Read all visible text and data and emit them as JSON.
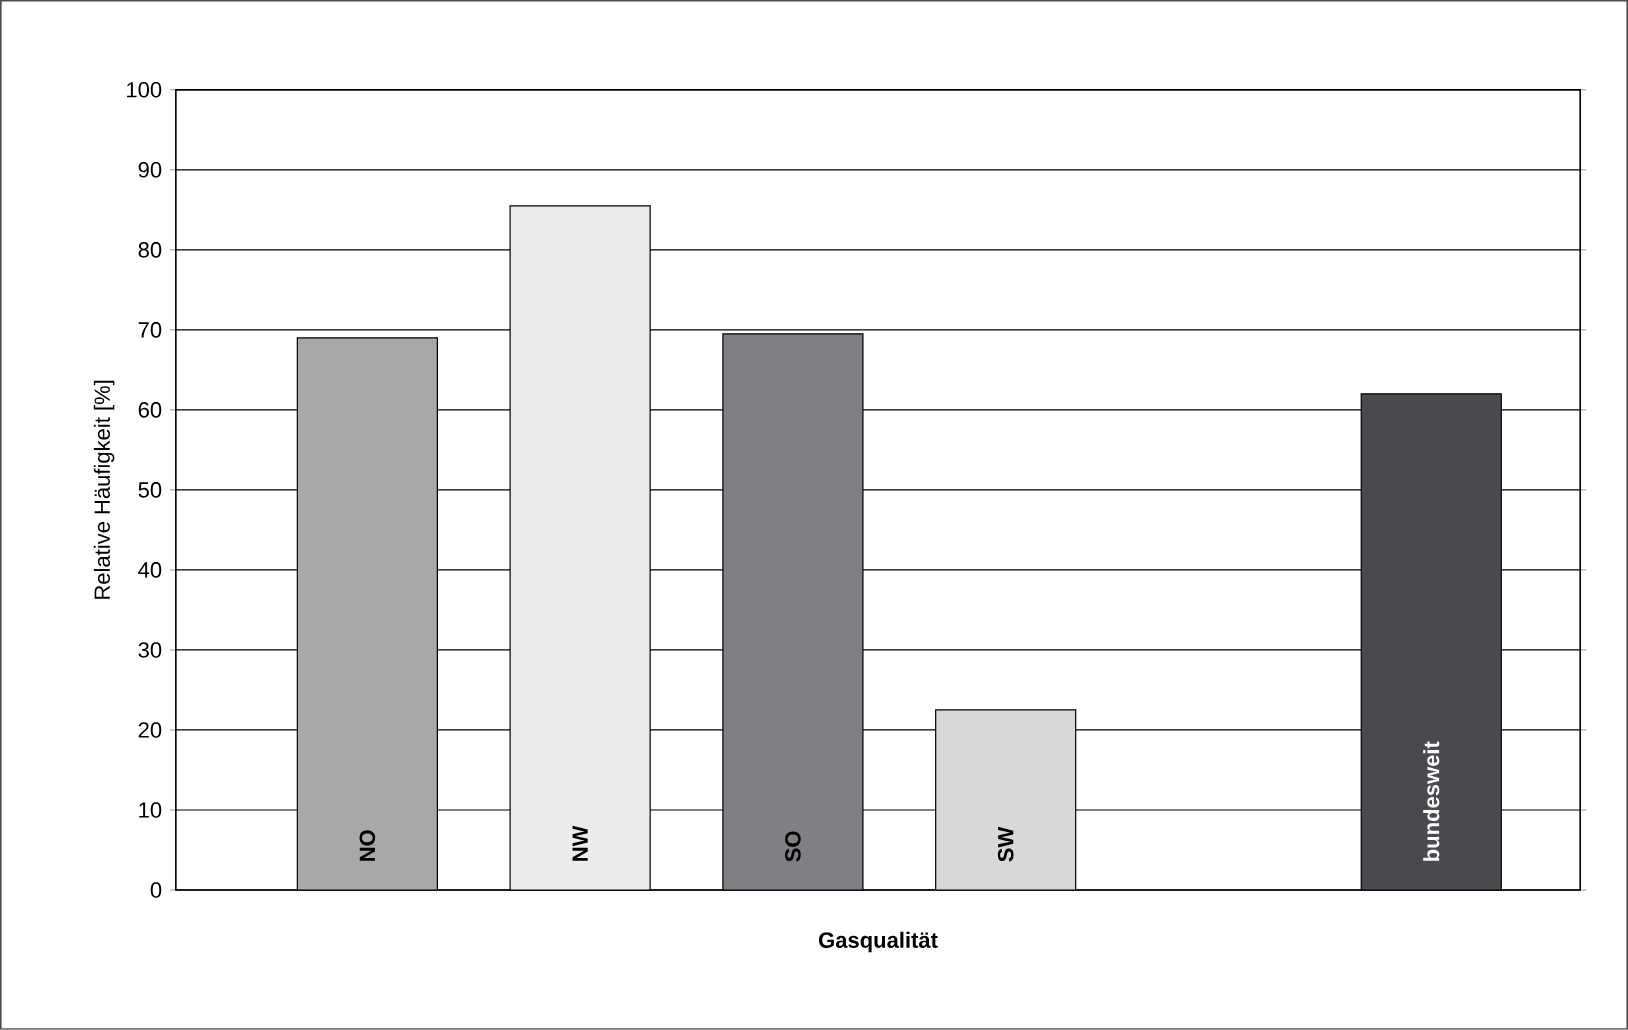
{
  "chart_data": {
    "type": "bar",
    "xlabel": "Gasqualität",
    "ylabel": "Relative Häufigkeit [%]",
    "categories": [
      "NO",
      "NW",
      "SO",
      "SW",
      null,
      "bundesweit"
    ],
    "values": [
      69,
      85.5,
      69.5,
      22.5,
      null,
      62
    ],
    "colors": [
      "#a8a8aa",
      "#ececec",
      "#808084",
      "#d8d8d8",
      "#ffffff",
      "#4a4a4e"
    ],
    "ylim": [
      0,
      100
    ],
    "yticks": [
      0,
      10,
      20,
      30,
      40,
      50,
      60,
      70,
      80,
      90,
      100
    ],
    "grid": "y"
  }
}
